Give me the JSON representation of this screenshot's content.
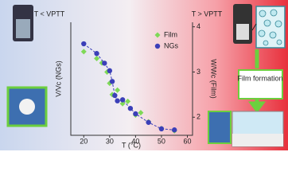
{
  "chart_data": {
    "type": "scatter",
    "annotations": {
      "left": "T < VPTT",
      "right": "T > VPTT",
      "process": "Film formation"
    },
    "x_label": "T (°C)",
    "y_label": "V/Vc (NGs)",
    "y2_label": "W/Wc (Film)",
    "xlim": [
      15,
      62
    ],
    "xticks": [
      20,
      30,
      40,
      50,
      60
    ],
    "ylim": [
      0,
      1.05
    ],
    "y2lim": [
      1.6,
      4.1
    ],
    "y2ticks": [
      2,
      3,
      4
    ],
    "series": [
      {
        "name": "Film",
        "color": "#7ed957",
        "marker": "diamond",
        "axis": "y2",
        "x": [
          20,
          25,
          27,
          29,
          30,
          31,
          33,
          35,
          37,
          40,
          42,
          45,
          50,
          55
        ],
        "values": [
          3.45,
          3.3,
          3.2,
          3.0,
          2.75,
          2.5,
          2.6,
          2.3,
          2.35,
          2.05,
          2.1,
          1.9,
          1.75,
          1.7
        ]
      },
      {
        "name": "NGs",
        "color": "#3b3fb8",
        "marker": "circle",
        "dashed": true,
        "x": [
          20,
          25,
          28,
          30,
          31,
          32,
          33,
          35,
          38,
          40,
          45,
          50,
          55
        ],
        "values": [
          0.85,
          0.76,
          0.67,
          0.6,
          0.5,
          0.37,
          0.32,
          0.33,
          0.25,
          0.2,
          0.12,
          0.06,
          0.05
        ]
      }
    ]
  }
}
